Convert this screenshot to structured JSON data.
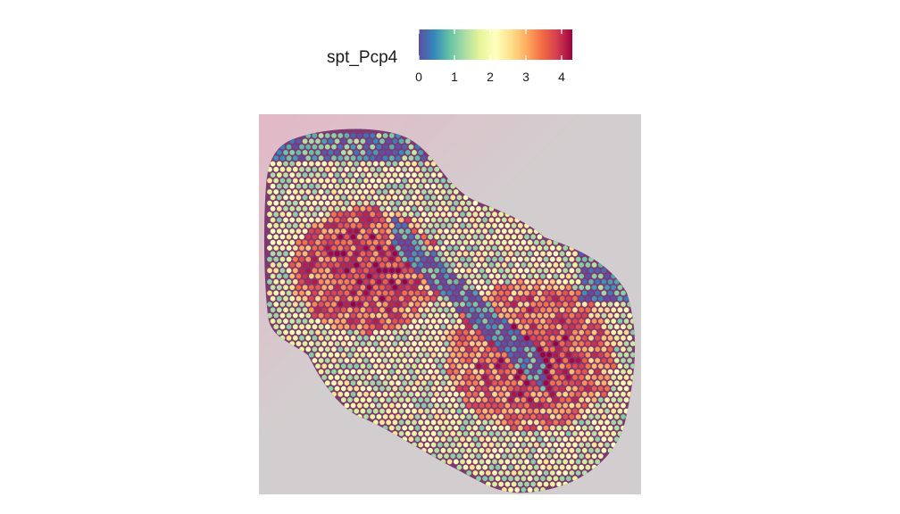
{
  "legend": {
    "title": "spt_Pcp4",
    "ticks": [
      "0",
      "1",
      "2",
      "3",
      "4"
    ],
    "range": [
      0,
      4.3
    ],
    "colormap": [
      "#5E4FA2",
      "#3288BD",
      "#66C2A5",
      "#ABDDA4",
      "#E6F598",
      "#FFFFBF",
      "#FEE08B",
      "#FDAE61",
      "#F46D43",
      "#D53E4F",
      "#9E0142"
    ]
  },
  "colors": {
    "tissue_fill": "#7d3a72",
    "background_light": "#d2cecf",
    "background_pink": "#e3b8c6"
  }
}
